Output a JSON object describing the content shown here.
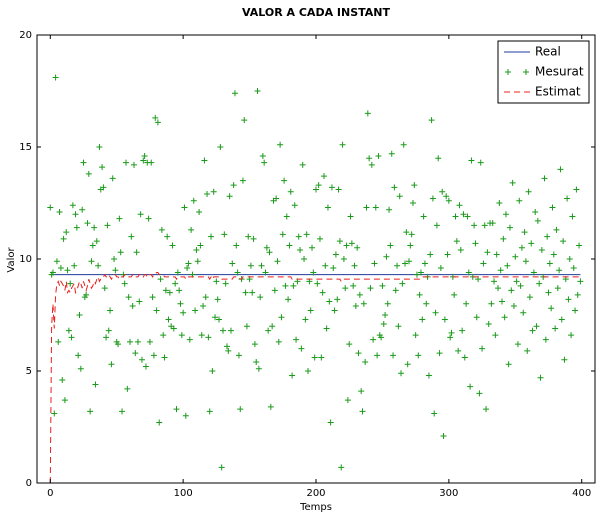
{
  "chart_data": {
    "type": "line",
    "title": "VALOR A CADA INSTANT",
    "xlabel": "Temps",
    "ylabel": "Valor",
    "xlim": [
      -10,
      410
    ],
    "ylim": [
      0,
      20
    ],
    "xticks": [
      0,
      100,
      200,
      300,
      400
    ],
    "yticks": [
      0,
      5,
      10,
      15,
      20
    ],
    "grid": false,
    "legend": "upper right",
    "x": [
      0,
      1,
      2,
      3,
      4,
      5,
      6,
      7,
      8,
      9,
      10,
      11,
      12,
      13,
      14,
      15,
      16,
      17,
      18,
      19,
      20,
      21,
      22,
      23,
      24,
      25,
      26,
      27,
      28,
      29,
      30,
      31,
      32,
      33,
      34,
      35,
      36,
      37,
      38,
      39,
      40,
      41,
      42,
      43,
      44,
      45,
      46,
      47,
      48,
      49,
      50,
      51,
      52,
      53,
      54,
      55,
      56,
      57,
      58,
      59,
      60,
      61,
      62,
      63,
      64,
      65,
      66,
      67,
      68,
      69,
      70,
      71,
      72,
      73,
      74,
      75,
      76,
      77,
      78,
      79,
      80,
      81,
      82,
      83,
      84,
      85,
      86,
      87,
      88,
      89,
      90,
      91,
      92,
      93,
      94,
      95,
      96,
      97,
      98,
      99,
      100,
      101,
      102,
      103,
      104,
      105,
      106,
      107,
      108,
      109,
      110,
      111,
      112,
      113,
      114,
      115,
      116,
      117,
      118,
      119,
      120,
      121,
      122,
      123,
      124,
      125,
      126,
      127,
      128,
      129,
      130,
      131,
      132,
      133,
      134,
      135,
      136,
      137,
      138,
      139,
      140,
      141,
      142,
      143,
      144,
      145,
      146,
      147,
      148,
      149,
      150,
      151,
      152,
      153,
      154,
      155,
      156,
      157,
      158,
      159,
      160,
      161,
      162,
      163,
      164,
      165,
      166,
      167,
      168,
      169,
      170,
      171,
      172,
      173,
      174,
      175,
      176,
      177,
      178,
      179,
      180,
      181,
      182,
      183,
      184,
      185,
      186,
      187,
      188,
      189,
      190,
      191,
      192,
      193,
      194,
      195,
      196,
      197,
      198,
      199,
      200,
      201,
      202,
      203,
      204,
      205,
      206,
      207,
      208,
      209,
      210,
      211,
      212,
      213,
      214,
      215,
      216,
      217,
      218,
      219,
      220,
      221,
      222,
      223,
      224,
      225,
      226,
      227,
      228,
      229,
      230,
      231,
      232,
      233,
      234,
      235,
      236,
      237,
      238,
      239,
      240,
      241,
      242,
      243,
      244,
      245,
      246,
      247,
      248,
      249,
      250,
      251,
      252,
      253,
      254,
      255,
      256,
      257,
      258,
      259,
      260,
      261,
      262,
      263,
      264,
      265,
      266,
      267,
      268,
      269,
      270,
      271,
      272,
      273,
      274,
      275,
      276,
      277,
      278,
      279,
      280,
      281,
      282,
      283,
      284,
      285,
      286,
      287,
      288,
      289,
      290,
      291,
      292,
      293,
      294,
      295,
      296,
      297,
      298,
      299,
      300,
      301,
      302,
      303,
      304,
      305,
      306,
      307,
      308,
      309,
      310,
      311,
      312,
      313,
      314,
      315,
      316,
      317,
      318,
      319,
      320,
      321,
      322,
      323,
      324,
      325,
      326,
      327,
      328,
      329,
      330,
      331,
      332,
      333,
      334,
      335,
      336,
      337,
      338,
      339,
      340,
      341,
      342,
      343,
      344,
      345,
      346,
      347,
      348,
      349,
      350,
      351,
      352,
      353,
      354,
      355,
      356,
      357,
      358,
      359,
      360,
      361,
      362,
      363,
      364,
      365,
      366,
      367,
      368,
      369,
      370,
      371,
      372,
      373,
      374,
      375,
      376,
      377,
      378,
      379,
      380,
      381,
      382,
      383,
      384,
      385,
      386,
      387,
      388,
      389,
      390,
      391,
      392,
      393,
      394,
      395,
      396,
      397,
      398,
      399
    ],
    "series": [
      {
        "name": "Real",
        "color": "#1f3b9c",
        "linestyle": "solid",
        "x": [
          0,
          399
        ],
        "values": [
          9.3,
          9.3
        ]
      },
      {
        "name": "Mesurat",
        "color": "#1a9a1a",
        "marker": "+",
        "values": [
          12.3,
          9.3,
          9.4,
          3.1,
          18.1,
          9.9,
          6.3,
          12.1,
          9.6,
          4.6,
          10.9,
          3.7,
          11.2,
          9.5,
          6.8,
          8.9,
          6.5,
          12.4,
          9.7,
          12.0,
          11.4,
          5.7,
          7.5,
          5.1,
          12.2,
          14.3,
          8.3,
          8.4,
          11.6,
          13.8,
          3.2,
          9.9,
          10.6,
          11.4,
          4.4,
          10.8,
          9.7,
          15.0,
          13.1,
          14.1,
          13.2,
          8.7,
          6.5,
          11.5,
          6.8,
          7.7,
          5.3,
          13.6,
          10.0,
          9.5,
          6.3,
          6.2,
          11.8,
          10.3,
          3.2,
          9.3,
          8.9,
          14.3,
          4.2,
          8.3,
          6.3,
          11.0,
          7.9,
          14.2,
          5.8,
          10.3,
          6.3,
          8.1,
          12.0,
          5.5,
          14.4,
          14.6,
          5.2,
          14.3,
          11.8,
          6.3,
          14.3,
          8.3,
          5.7,
          16.3,
          7.7,
          16.1,
          2.7,
          9.1,
          11.3,
          6.6,
          5.6,
          8.6,
          11.0,
          7.3,
          8.5,
          7.0,
          10.6,
          6.9,
          8.9,
          3.3,
          9.4,
          8.6,
          8.0,
          6.6,
          7.6,
          12.3,
          3.0,
          9.6,
          9.8,
          6.4,
          11.3,
          9.3,
          12.6,
          7.7,
          10.4,
          9.9,
          12.1,
          10.6,
          6.6,
          7.9,
          14.4,
          8.3,
          12.9,
          6.5,
          3.2,
          11.0,
          5.0,
          13.0,
          7.4,
          9.0,
          8.2,
          7.3,
          15.0,
          0.7,
          6.8,
          11.1,
          8.9,
          6.1,
          5.9,
          12.8,
          6.8,
          9.8,
          13.3,
          17.4,
          10.6,
          9.4,
          5.7,
          3.3,
          9.1,
          13.5,
          16.2,
          8.5,
          7.0,
          11.0,
          9.1,
          9.7,
          8.5,
          10.9,
          6.2,
          5.4,
          17.5,
          5.1,
          8.3,
          9.7,
          14.6,
          14.3,
          9.4,
          10.5,
          6.8,
          10.3,
          3.4,
          7.0,
          12.6,
          8.6,
          12.7,
          9.9,
          6.3,
          15.1,
          7.4,
          11.1,
          13.5,
          8.8,
          11.9,
          8.2,
          10.6,
          13.0,
          4.8,
          8.8,
          12.4,
          6.4,
          9.0,
          11.0,
          10.4,
          6.0,
          14.2,
          10.0,
          7.3,
          11.1,
          5.0,
          9.0,
          7.7,
          10.5,
          9.4,
          5.6,
          13.1,
          8.9,
          13.3,
          10.9,
          5.6,
          8.5,
          13.7,
          9.7,
          6.9,
          12.3,
          8.1,
          2.7,
          13.2,
          9.6,
          7.7,
          10.2,
          8.2,
          13.1,
          10.8,
          0.7,
          15.1,
          10.0,
          8.7,
          10.6,
          3.7,
          6.2,
          11.9,
          10.7,
          8.8,
          9.7,
          7.9,
          10.5,
          5.8,
          8.4,
          4.1,
          3.2,
          8.0,
          5.4,
          12.3,
          16.5,
          14.5,
          8.7,
          14.2,
          6.4,
          9.8,
          12.3,
          5.7,
          14.6,
          6.6,
          6.5,
          8.8,
          7.1,
          7.5,
          10.1,
          8.0,
          12.2,
          10.6,
          14.7,
          5.7,
          13.2,
          8.6,
          9.7,
          7.0,
          12.8,
          4.9,
          8.9,
          15.1,
          9.8,
          11.2,
          5.3,
          9.9,
          10.6,
          11.1,
          12.5,
          13.3,
          6.6,
          9.3,
          5.7,
          8.4,
          9.4,
          7.3,
          11.9,
          9.8,
          8.0,
          9.2,
          4.8,
          10.2,
          16.2,
          12.7,
          3.1,
          7.6,
          11.5,
          14.5,
          5.8,
          9.6,
          13.0,
          2.1,
          7.3,
          12.8,
          10.2,
          12.6,
          6.5,
          6.7,
          9.2,
          8.4,
          11.9,
          10.8,
          5.9,
          12.4,
          10.4,
          6.8,
          12.0,
          5.6,
          8.0,
          11.9,
          9.4,
          4.3,
          14.4,
          9.2,
          11.5,
          10.7,
          7.4,
          9.1,
          4.0,
          14.3,
          6.0,
          9.8,
          11.5,
          3.3,
          10.3,
          7.1,
          11.6,
          8.0,
          11.6,
          9.0,
          6.6,
          10.2,
          8.7,
          12.5,
          9.5,
          8.1,
          10.9,
          7.4,
          12.0,
          9.7,
          5.3,
          11.4,
          8.6,
          13.4,
          7.9,
          10.1,
          9.0,
          6.2,
          12.6,
          8.8,
          10.5,
          7.6,
          11.2,
          9.9,
          5.9,
          13.0,
          8.3,
          10.7,
          6.8,
          9.4,
          12.1,
          7.0,
          11.7,
          8.9,
          4.7,
          10.4,
          9.2,
          13.6,
          6.4,
          11.0,
          8.5,
          9.8,
          7.8,
          12.3,
          10.2,
          6.9,
          11.3,
          8.7,
          9.5,
          14.0,
          7.3,
          10.8,
          5.5,
          9.1,
          12.7,
          8.2,
          10.0,
          6.6,
          11.9,
          9.6,
          7.7,
          13.1,
          8.4,
          10.6,
          9.0
        ]
      },
      {
        "name": "Estimat",
        "color": "#e8201c",
        "linestyle": "dashed",
        "values": [
          0,
          7.0,
          8.0,
          6.9,
          8.4,
          8.9,
          9.0,
          8.8,
          9.0,
          8.9,
          8.8,
          8.6,
          9.0,
          8.5,
          8.6,
          8.5,
          8.7,
          8.8,
          8.9,
          8.5,
          8.6,
          8.8,
          9.0,
          8.9,
          8.7,
          9.0,
          8.8,
          8.6,
          8.8,
          9.1,
          8.9,
          8.7,
          8.8,
          9.0,
          8.9,
          9.1,
          9.2,
          9.0,
          9.1,
          9.2,
          9.2,
          9.3,
          9.2,
          9.2,
          9.3,
          9.2,
          9.1,
          9.2,
          9.2,
          9.3,
          9.2,
          9.2,
          9.1,
          9.2,
          9.2,
          9.2,
          9.3,
          9.3,
          9.2,
          9.2,
          9.2,
          9.2,
          9.3,
          9.2,
          9.2,
          9.2,
          9.2,
          9.3,
          9.3,
          9.3,
          9.2,
          9.3,
          9.3,
          9.2,
          9.2,
          9.3,
          9.3,
          9.2,
          9.3,
          9.3,
          9.4,
          9.4,
          9.3,
          9.3,
          9.3,
          9.3,
          9.2,
          9.2,
          9.2,
          9.2,
          9.2,
          9.2,
          9.2,
          9.2,
          9.2,
          9.1,
          9.2,
          9.2,
          9.2,
          9.2,
          9.2,
          9.2,
          9.1,
          9.2,
          9.2,
          9.2,
          9.2,
          9.2,
          9.2,
          9.2,
          9.2,
          9.2,
          9.2,
          9.2,
          9.2,
          9.2,
          9.2,
          9.2,
          9.2,
          9.2,
          9.1,
          9.2,
          9.1,
          9.2,
          9.2,
          9.2,
          9.2,
          9.2,
          9.2,
          9.1,
          9.1,
          9.1,
          9.1,
          9.1,
          9.1,
          9.1,
          9.1,
          9.1,
          9.2,
          9.2,
          9.2,
          9.2,
          9.2,
          9.1,
          9.1,
          9.2,
          9.2,
          9.2,
          9.2,
          9.2,
          9.2,
          9.2,
          9.2,
          9.2,
          9.2,
          9.2,
          9.2,
          9.2,
          9.2,
          9.2,
          9.2,
          9.2,
          9.2,
          9.2,
          9.2,
          9.2,
          9.2,
          9.2,
          9.2,
          9.2,
          9.2,
          9.2,
          9.2,
          9.2,
          9.2,
          9.2,
          9.2,
          9.2,
          9.2,
          9.2,
          9.2,
          9.2,
          9.1,
          9.1,
          9.1,
          9.1,
          9.1,
          9.1,
          9.1,
          9.1,
          9.1,
          9.1,
          9.1,
          9.1,
          9.1,
          9.1,
          9.1,
          9.1,
          9.1,
          9.1,
          9.1,
          9.1,
          9.1,
          9.1,
          9.1,
          9.1,
          9.1,
          9.1,
          9.1,
          9.1,
          9.1,
          9.1,
          9.1,
          9.1,
          9.1,
          9.1,
          9.1,
          9.1,
          9.1,
          9.0,
          9.1,
          9.1,
          9.1,
          9.1,
          9.1,
          9.1,
          9.1,
          9.1,
          9.1,
          9.1,
          9.1,
          9.1,
          9.1,
          9.1,
          9.1,
          9.1,
          9.1,
          9.1,
          9.1,
          9.1,
          9.1,
          9.1,
          9.1,
          9.1,
          9.1,
          9.1,
          9.1,
          9.1,
          9.1,
          9.1,
          9.1,
          9.1,
          9.1,
          9.1,
          9.1,
          9.1,
          9.1,
          9.1,
          9.1,
          9.1,
          9.1,
          9.1,
          9.1,
          9.1,
          9.1,
          9.1,
          9.1,
          9.1,
          9.1,
          9.1,
          9.1,
          9.1,
          9.1,
          9.1,
          9.1,
          9.1,
          9.1,
          9.1,
          9.1,
          9.2,
          9.2,
          9.2,
          9.2,
          9.2,
          9.2,
          9.2,
          9.2,
          9.2,
          9.2,
          9.2,
          9.2,
          9.2,
          9.2,
          9.2,
          9.2,
          9.2,
          9.2,
          9.2,
          9.2,
          9.2,
          9.2,
          9.2,
          9.2,
          9.2,
          9.2,
          9.2,
          9.2,
          9.2,
          9.2,
          9.2,
          9.2,
          9.2,
          9.2,
          9.2,
          9.2,
          9.2,
          9.2,
          9.2,
          9.2,
          9.2,
          9.2,
          9.2,
          9.2,
          9.2,
          9.2,
          9.2,
          9.2,
          9.2,
          9.2,
          9.2,
          9.2,
          9.2,
          9.2,
          9.2,
          9.2,
          9.2,
          9.2,
          9.2,
          9.2,
          9.2,
          9.2,
          9.2,
          9.2,
          9.2,
          9.2,
          9.2,
          9.2,
          9.2,
          9.2,
          9.2,
          9.2,
          9.2,
          9.2,
          9.2,
          9.2,
          9.2,
          9.2,
          9.2,
          9.2,
          9.2,
          9.2,
          9.2,
          9.2,
          9.2,
          9.2,
          9.2,
          9.2,
          9.2,
          9.2,
          9.2,
          9.2,
          9.2,
          9.2,
          9.2,
          9.2,
          9.2,
          9.2,
          9.2,
          9.2,
          9.2,
          9.2,
          9.2,
          9.2,
          9.2,
          9.2,
          9.2,
          9.2,
          9.2,
          9.2,
          9.2,
          9.2,
          9.2,
          9.2,
          9.2,
          9.2,
          9.2,
          9.2,
          9.2,
          9.2,
          9.2
        ]
      }
    ]
  }
}
